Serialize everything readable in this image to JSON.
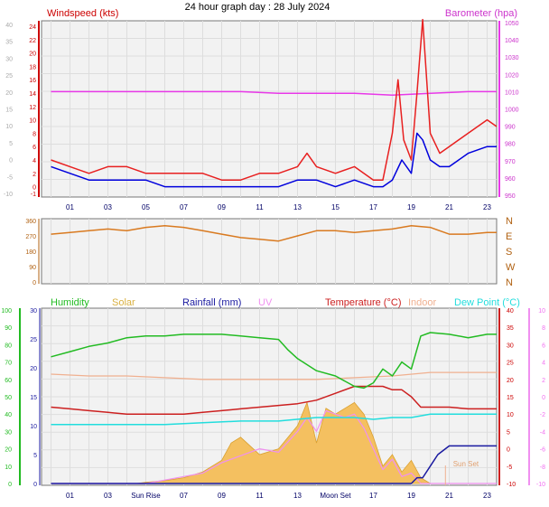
{
  "title": "24 hour graph day : 28 July 2024",
  "chart_data": [
    {
      "type": "line",
      "panel": "wind-pressure",
      "x_ticks": [
        "01",
        "03",
        "05",
        "07",
        "09",
        "11",
        "13",
        "15",
        "17",
        "19",
        "21",
        "23"
      ],
      "xlim_hours": [
        -0.5,
        23.5
      ],
      "left_axis": {
        "label": "Windspeed (kts)",
        "ticks": [
          "-1",
          "0",
          "2",
          "4",
          "6",
          "8",
          "10",
          "12",
          "14",
          "16",
          "18",
          "20",
          "22",
          "24"
        ]
      },
      "left_axis_faint": {
        "ticks": [
          "-10",
          "-5",
          "0",
          "5",
          "10",
          "15",
          "20",
          "25",
          "30",
          "35",
          "40"
        ]
      },
      "right_axis": {
        "label": "Barometer (hpa)",
        "ticks": [
          "950",
          "960",
          "970",
          "980",
          "990",
          "1000",
          "1010",
          "1020",
          "1030",
          "1040",
          "1050"
        ]
      },
      "series": [
        {
          "name": "Windspeed (kts)",
          "color": "#e82020",
          "x": [
            0,
            1,
            2,
            3,
            4,
            5,
            6,
            7,
            8,
            9,
            10,
            11,
            12,
            13,
            13.5,
            14,
            15,
            16,
            17,
            17.5,
            18,
            18.3,
            18.6,
            19,
            19.3,
            19.6,
            20,
            20.5,
            21,
            22,
            23,
            23.5
          ],
          "y": [
            4,
            3,
            2,
            3,
            3,
            2,
            2,
            2,
            2,
            1,
            1,
            2,
            2,
            3,
            5,
            3,
            2,
            3,
            1,
            1,
            8,
            16,
            7,
            4,
            14,
            25,
            8,
            5,
            6,
            8,
            10,
            9
          ]
        },
        {
          "name": "Wind gust",
          "color": "#0000dd",
          "x": [
            0,
            1,
            2,
            3,
            4,
            5,
            6,
            7,
            8,
            9,
            10,
            11,
            12,
            13,
            14,
            15,
            16,
            17,
            17.5,
            18,
            18.5,
            19,
            19.3,
            19.6,
            20,
            20.5,
            21,
            22,
            23,
            23.5
          ],
          "y": [
            3,
            2,
            1,
            1,
            1,
            1,
            0,
            0,
            0,
            0,
            0,
            0,
            0,
            1,
            1,
            0,
            1,
            0,
            0,
            1,
            4,
            2,
            8,
            7,
            4,
            3,
            3,
            5,
            6,
            6
          ]
        },
        {
          "name": "Barometer (hpa)",
          "color": "#e838e8",
          "x": [
            0,
            2,
            4,
            6,
            8,
            10,
            12,
            14,
            16,
            18,
            20,
            22,
            23.5
          ],
          "y": [
            1010,
            1010,
            1010,
            1010,
            1010,
            1010,
            1009,
            1009,
            1009,
            1008,
            1009,
            1010,
            1010
          ]
        }
      ]
    },
    {
      "type": "line",
      "panel": "wind-direction",
      "left_axis": {
        "ticks": [
          "0",
          "90",
          "180",
          "270",
          "360"
        ]
      },
      "right_axis": {
        "ticks": [
          "N",
          "E",
          "S",
          "W",
          "N"
        ]
      },
      "series": [
        {
          "name": "Wind direction",
          "color": "#d97a20",
          "x": [
            0,
            1,
            2,
            3,
            4,
            5,
            6,
            7,
            8,
            9,
            10,
            11,
            12,
            13,
            14,
            15,
            16,
            17,
            18,
            19,
            20,
            21,
            22,
            23,
            23.5
          ],
          "y": [
            280,
            290,
            300,
            310,
            300,
            320,
            330,
            320,
            300,
            280,
            260,
            250,
            240,
            270,
            300,
            300,
            290,
            300,
            310,
            330,
            320,
            280,
            280,
            290,
            290
          ]
        }
      ]
    },
    {
      "type": "line",
      "panel": "temperature-humidity",
      "legend": [
        "Humidity",
        "Solar",
        "Rainfall (mm)",
        "UV",
        "Temperature (°C)",
        "Indoor",
        "Dew Point (°C)"
      ],
      "legend_colors": [
        "#22bb22",
        "#d9b040",
        "#1a1aa0",
        "#f090f0",
        "#cc2020",
        "#f0b090",
        "#22dddd"
      ],
      "x_ticks": [
        "01",
        "03",
        "Sun Rise",
        "07",
        "09",
        "11",
        "13",
        "Moon Set",
        "17",
        "19",
        "21",
        "23"
      ],
      "annotations": [
        "Sun Set"
      ],
      "axis_humidity": {
        "ticks": [
          "0",
          "10",
          "20",
          "30",
          "40",
          "50",
          "60",
          "70",
          "80",
          "90",
          "100"
        ]
      },
      "axis_solar": {
        "ticks": [
          "0",
          "5",
          "10",
          "15",
          "20",
          "25",
          "30"
        ]
      },
      "axis_temperature": {
        "ticks": [
          "-10",
          "-5",
          "0",
          "5",
          "10",
          "15",
          "20",
          "25",
          "30",
          "35",
          "40"
        ]
      },
      "axis_uv": {
        "ticks": [
          "-10",
          "-8",
          "-6",
          "-4",
          "-2",
          "0",
          "2",
          "4",
          "6",
          "8",
          "10"
        ]
      },
      "series": [
        {
          "name": "Humidity",
          "color": "#22bb22",
          "x": [
            0,
            1,
            2,
            3,
            4,
            5,
            6,
            7,
            8,
            9,
            10,
            11,
            12,
            12.5,
            13,
            14,
            15,
            16,
            16.5,
            17,
            17.5,
            18,
            18.5,
            19,
            19.5,
            20,
            21,
            22,
            23,
            23.5
          ],
          "y": [
            73,
            76,
            79,
            81,
            84,
            85,
            85,
            86,
            86,
            86,
            85,
            84,
            83,
            77,
            72,
            65,
            62,
            56,
            55,
            58,
            66,
            62,
            70,
            66,
            85,
            87,
            86,
            84,
            86,
            86
          ]
        },
        {
          "name": "Temperature (°C)",
          "color": "#cc2020",
          "x": [
            0,
            1,
            2,
            3,
            4,
            5,
            6,
            7,
            8,
            9,
            10,
            11,
            12,
            13,
            14,
            15,
            16,
            17,
            17.5,
            18,
            18.5,
            19,
            19.5,
            20,
            21,
            22,
            23,
            23.5
          ],
          "y": [
            12,
            11.5,
            11,
            10.5,
            10,
            10,
            10,
            10,
            10.5,
            11,
            11.5,
            12,
            12.5,
            13,
            14,
            16,
            18,
            18,
            18,
            17,
            17,
            15,
            12,
            12,
            12,
            11.5,
            11.5,
            11.5
          ]
        },
        {
          "name": "Dew Point (°C)",
          "color": "#22dddd",
          "x": [
            0,
            2,
            4,
            6,
            8,
            10,
            12,
            14,
            16,
            17,
            18,
            19,
            20,
            22,
            23.5
          ],
          "y": [
            7,
            7,
            7,
            7,
            7.5,
            8,
            8,
            9,
            9,
            8.5,
            9,
            9,
            10,
            10,
            10
          ]
        },
        {
          "name": "Indoor",
          "color": "#f0b090",
          "x": [
            0,
            2,
            4,
            6,
            8,
            10,
            12,
            14,
            16,
            18,
            20,
            22,
            23.5
          ],
          "y": [
            21.5,
            21,
            21,
            20.5,
            20,
            20,
            20,
            20,
            20.5,
            21,
            22,
            22,
            22
          ]
        },
        {
          "name": "Rainfall (mm)",
          "color": "#1a1aa0",
          "x": [
            0,
            18,
            19,
            19.3,
            19.6,
            20,
            20.4,
            21,
            22,
            23,
            23.5
          ],
          "y": [
            0,
            0,
            0,
            1,
            1,
            3,
            5,
            6.5,
            6.5,
            6.5,
            6.5
          ]
        },
        {
          "name": "Solar",
          "color": "#d9b040",
          "x": [
            0,
            4.5,
            5,
            6,
            7,
            8,
            9,
            9.5,
            10,
            11,
            12,
            13,
            13.5,
            14,
            14.5,
            15,
            15.5,
            16,
            16.5,
            17,
            17.5,
            18,
            18.5,
            19,
            19.5,
            20,
            23.5
          ],
          "y": [
            0,
            0,
            0.2,
            0.5,
            1,
            2,
            4,
            7,
            8,
            5,
            6,
            10,
            14,
            7,
            13,
            12,
            13,
            14,
            12,
            8,
            3,
            5,
            2,
            4,
            1,
            0,
            0
          ]
        },
        {
          "name": "UV",
          "color": "#f090f0",
          "x": [
            0,
            5,
            6,
            7,
            8,
            9,
            10,
            11,
            12,
            13,
            13.5,
            14,
            14.5,
            15,
            15.5,
            16,
            16.5,
            17,
            17.5,
            18,
            18.5,
            19,
            19.5,
            20,
            23.5
          ],
          "y": [
            -10,
            -10,
            -9.6,
            -9.2,
            -8.8,
            -7.6,
            -6.8,
            -6,
            -6.4,
            -4,
            -2.4,
            -4,
            -1.6,
            -2,
            -2.4,
            -2,
            -3.6,
            -6,
            -8.4,
            -7.2,
            -9.2,
            -8.8,
            -10,
            -10,
            -10
          ]
        }
      ]
    }
  ]
}
